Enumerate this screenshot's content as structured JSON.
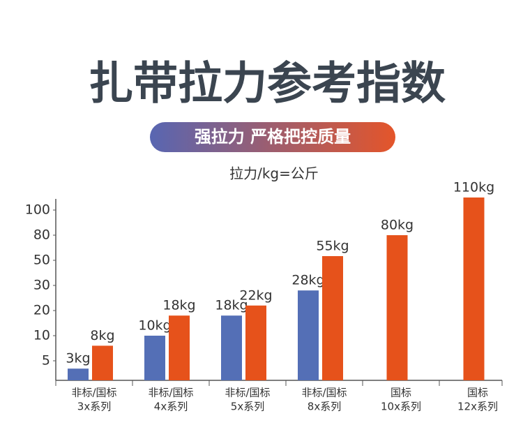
{
  "chart_data": {
    "type": "bar",
    "title": "扎带拉力参考指数",
    "subtitle": "强拉力 严格把控质量",
    "y_label": "拉力/kg=公斤",
    "categories": [
      [
        "非标/国标",
        "3x系列"
      ],
      [
        "非标/国标",
        "4x系列"
      ],
      [
        "非标/国标",
        "5x系列"
      ],
      [
        "非标/国标",
        "8x系列"
      ],
      [
        "国标",
        "10x系列"
      ],
      [
        "国标",
        "12x系列"
      ]
    ],
    "series": [
      {
        "color": "#546fb6",
        "values": [
          3,
          10,
          18,
          28,
          null,
          null
        ],
        "value_labels": [
          "3kg",
          "10kg",
          "18kg",
          "28kg",
          null,
          null
        ]
      },
      {
        "color": "#e6521b",
        "values": [
          8,
          18,
          22,
          55,
          80,
          110
        ],
        "value_labels": [
          "8kg",
          "18kg",
          "22kg",
          "55kg",
          "80kg",
          "110kg"
        ]
      }
    ],
    "ylim": [
      0,
      110
    ],
    "yticks": [
      5,
      10,
      20,
      30,
      50,
      80,
      100
    ]
  }
}
